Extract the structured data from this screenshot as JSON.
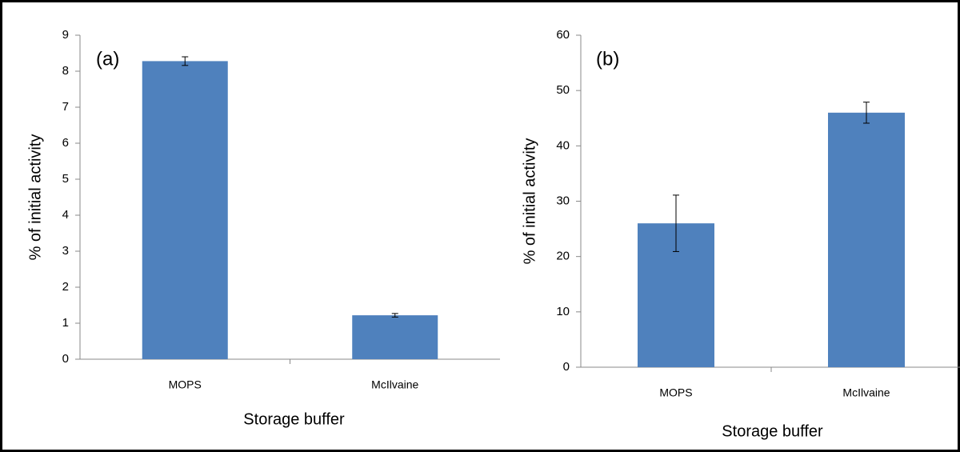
{
  "chart_data": [
    {
      "type": "bar",
      "panel_label": "(a)",
      "xlabel": "Storage buffer",
      "ylabel": "% of initial activity",
      "categories": [
        "MOPS",
        "McIlvaine"
      ],
      "values": [
        8.28,
        1.22
      ],
      "errors": [
        0.12,
        0.05
      ],
      "color": "#4f81bd",
      "ylim": [
        0,
        9
      ],
      "yticks": [
        0,
        1,
        2,
        3,
        4,
        5,
        6,
        7,
        8,
        9
      ]
    },
    {
      "type": "bar",
      "panel_label": "(b)",
      "xlabel": "Storage buffer",
      "ylabel": "% of initial activity",
      "categories": [
        "MOPS",
        "McIlvaine"
      ],
      "values": [
        26,
        46
      ],
      "errors": [
        5.1,
        1.9
      ],
      "color": "#4f81bd",
      "ylim": [
        0,
        60
      ],
      "yticks": [
        0,
        10,
        20,
        30,
        40,
        50,
        60
      ]
    }
  ]
}
